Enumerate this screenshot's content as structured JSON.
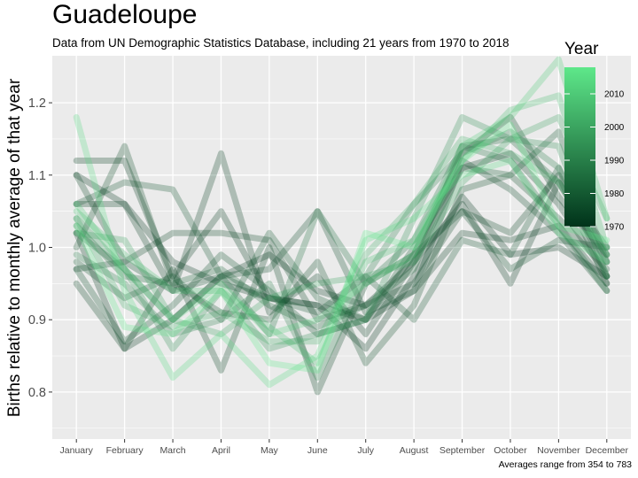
{
  "title": "Guadeloupe",
  "subtitle": "Data from UN Demographic Statistics Database, including 21 years from 1970 to 2018",
  "caption": "Averages range from 354 to 783",
  "colors": {
    "panel": "#ebebeb",
    "grid": "#ffffff",
    "low": "#00331a",
    "high": "#5ee88a",
    "tick": "#4d4d4d"
  },
  "chart_data": {
    "type": "line",
    "title": "Guadeloupe",
    "xlabel": "",
    "ylabel": "Births relative to monthly average of that year",
    "categories": [
      "January",
      "February",
      "March",
      "April",
      "May",
      "June",
      "July",
      "August",
      "September",
      "October",
      "November",
      "December"
    ],
    "ylim": [
      0.735,
      1.265
    ],
    "yticks": [
      0.8,
      0.9,
      1.0,
      1.1,
      1.2
    ],
    "grid": true,
    "legend": {
      "title": "Year",
      "position": "top-right",
      "type": "colorbar",
      "range": [
        1970,
        2018
      ],
      "ticks": [
        1970,
        1980,
        1990,
        2000,
        2010
      ]
    },
    "series": [
      {
        "year": 1970,
        "values": [
          1.1,
          1.06,
          0.98,
          0.95,
          0.93,
          0.92,
          0.86,
          0.96,
          1.07,
          0.99,
          1.0,
          0.96
        ]
      },
      {
        "year": 1971,
        "values": [
          1.02,
          0.86,
          0.9,
          0.96,
          0.99,
          0.94,
          0.92,
          0.98,
          1.06,
          0.95,
          1.09,
          0.98
        ]
      },
      {
        "year": 1972,
        "values": [
          1.12,
          1.12,
          0.96,
          1.05,
          0.93,
          0.92,
          0.9,
          0.94,
          1.02,
          1.01,
          1.03,
          0.95
        ]
      },
      {
        "year": 1973,
        "values": [
          1.06,
          1.06,
          0.94,
          1.13,
          0.91,
          0.96,
          0.88,
          0.98,
          1.11,
          1.13,
          1.06,
          0.96
        ]
      },
      {
        "year": 1974,
        "values": [
          0.95,
          0.86,
          0.97,
          0.83,
          1.0,
          0.8,
          0.95,
          0.99,
          1.13,
          1.18,
          1.07,
          0.99
        ]
      },
      {
        "year": 1975,
        "values": [
          1.1,
          0.98,
          1.02,
          1.02,
          1.01,
          0.9,
          0.92,
          0.95,
          1.05,
          1.02,
          1.1,
          0.95
        ]
      },
      {
        "year": 1976,
        "values": [
          0.97,
          0.98,
          0.94,
          0.96,
          0.97,
          1.05,
          0.91,
          0.94,
          1.12,
          1.08,
          1.02,
          0.94
        ]
      },
      {
        "year": 1977,
        "values": [
          1.0,
          1.14,
          0.95,
          0.91,
          0.9,
          0.98,
          0.84,
          0.92,
          1.08,
          1.1,
          1.04,
          0.97
        ]
      },
      {
        "year": 1978,
        "values": [
          0.97,
          0.87,
          0.92,
          0.99,
          0.94,
          0.88,
          0.9,
          0.99,
          1.05,
          0.97,
          1.01,
          1.0
        ]
      },
      {
        "year": 1979,
        "values": [
          1.06,
          1.09,
          1.08,
          0.96,
          0.93,
          0.91,
          0.96,
          0.9,
          1.01,
          0.99,
          1.11,
          0.96
        ]
      },
      {
        "year": 1980,
        "values": [
          0.98,
          0.93,
          0.96,
          0.9,
          1.02,
          0.93,
          0.9,
          1.0,
          1.11,
          1.1,
          1.16,
          0.98
        ]
      },
      {
        "year": 1983,
        "values": [
          1.03,
          0.96,
          0.95,
          0.97,
          0.92,
          0.89,
          0.92,
          0.97,
          1.14,
          1.15,
          1.09,
          1.0
        ]
      },
      {
        "year": 1986,
        "values": [
          1.02,
          0.97,
          0.9,
          0.96,
          0.88,
          1.05,
          0.95,
          1.01,
          1.14,
          1.12,
          1.03,
          0.94
        ]
      },
      {
        "year": 1990,
        "values": [
          0.99,
          0.95,
          0.88,
          0.9,
          0.95,
          0.82,
          0.96,
          1.06,
          1.13,
          1.16,
          1.11,
          0.99
        ]
      },
      {
        "year": 1995,
        "values": [
          1.04,
          0.97,
          0.86,
          0.94,
          0.86,
          0.88,
          0.9,
          1.04,
          1.18,
          1.15,
          1.14,
          0.96
        ]
      },
      {
        "year": 2000,
        "values": [
          1.02,
          1.01,
          0.9,
          0.88,
          0.93,
          0.95,
          0.96,
          0.98,
          1.09,
          1.15,
          1.18,
          1.04
        ]
      },
      {
        "year": 2003,
        "values": [
          1.04,
          0.92,
          0.89,
          0.91,
          0.87,
          0.87,
          0.99,
          1.06,
          1.15,
          1.13,
          1.09,
          0.99
        ]
      },
      {
        "year": 2006,
        "values": [
          1.05,
          0.99,
          0.94,
          0.94,
          0.89,
          0.84,
          0.98,
          1.01,
          1.12,
          1.19,
          1.21,
          1.0
        ]
      },
      {
        "year": 2010,
        "values": [
          1.06,
          0.97,
          0.9,
          0.95,
          0.88,
          0.9,
          0.95,
          0.99,
          1.14,
          1.18,
          1.26,
          1.04
        ]
      },
      {
        "year": 2014,
        "values": [
          1.18,
          0.94,
          0.82,
          0.88,
          0.81,
          0.85,
          1.01,
          1.04,
          1.1,
          1.12,
          1.02,
          0.98
        ]
      },
      {
        "year": 2018,
        "values": [
          1.03,
          0.89,
          0.88,
          0.94,
          0.84,
          0.83,
          1.02,
          1.0,
          1.12,
          1.17,
          1.03,
          1.01
        ]
      }
    ]
  }
}
